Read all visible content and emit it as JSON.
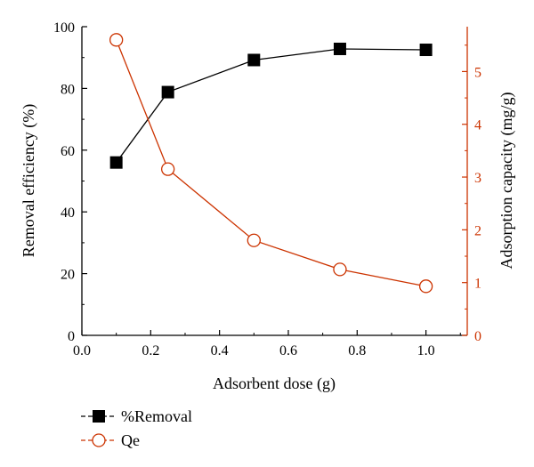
{
  "chart_data": {
    "type": "line",
    "xlabel": "Adsorbent dose (g)",
    "ylabel_left": "Removal efficiency (%)",
    "ylabel_right": "Adsorption capacity (mg/g)",
    "xlim": [
      0.0,
      1.12
    ],
    "ylim_left": [
      0,
      100
    ],
    "ylim_right": [
      0,
      5.85
    ],
    "x_ticks": [
      "0.0",
      "0.2",
      "0.4",
      "0.6",
      "0.8",
      "1.0"
    ],
    "y_left_ticks": [
      "0",
      "20",
      "40",
      "60",
      "80",
      "100"
    ],
    "y_right_ticks": [
      "0",
      "1",
      "2",
      "3",
      "4",
      "5"
    ],
    "legend_position": "bottom-left",
    "grid": false,
    "series": [
      {
        "name": "%Removal",
        "axis": "left",
        "marker": "square-filled",
        "color": "#000000",
        "x": [
          0.1,
          0.25,
          0.5,
          0.75,
          1.0
        ],
        "y": [
          56,
          78.8,
          89.2,
          92.8,
          92.5
        ]
      },
      {
        "name": "Qe",
        "axis": "right",
        "marker": "circle-open",
        "color": "#cc3300",
        "x": [
          0.1,
          0.25,
          0.5,
          0.75,
          1.0
        ],
        "y": [
          5.6,
          3.15,
          1.8,
          1.25,
          0.93
        ]
      }
    ]
  }
}
